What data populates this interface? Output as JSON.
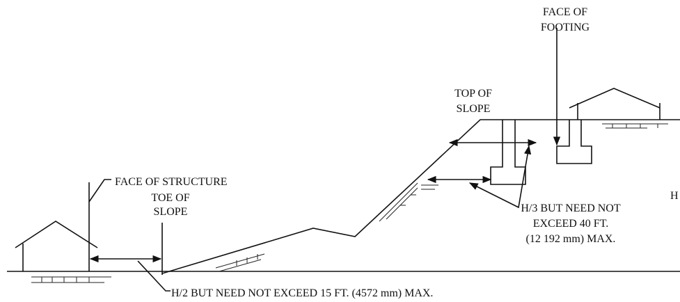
{
  "face_of_footing": [
    "FACE OF",
    "FOOTING"
  ],
  "top_of_slope": [
    "TOP OF",
    "SLOPE"
  ],
  "face_of_structure": "FACE OF STRUCTURE",
  "toe_of_slope": [
    "TOE OF",
    "SLOPE"
  ],
  "top_setback": [
    "H/3 BUT NEED NOT",
    "EXCEED 40 FT.",
    "(12 192 mm) MAX."
  ],
  "toe_setback": "H/2 BUT NEED NOT EXCEED 15 FT. (4572 mm) MAX.",
  "height_label": "H"
}
